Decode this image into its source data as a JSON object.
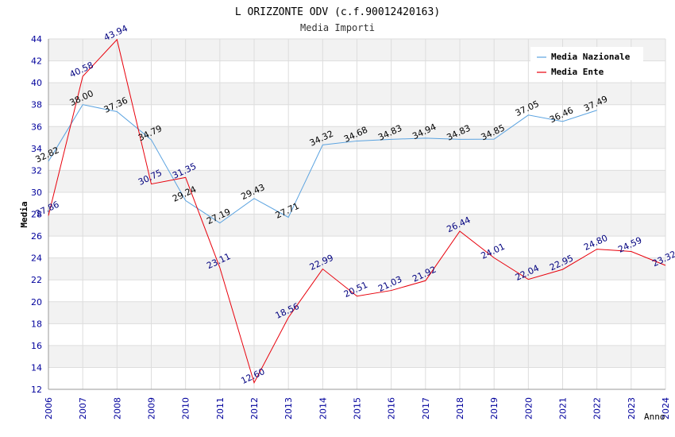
{
  "chart_data": {
    "type": "line",
    "title": "L ORIZZONTE ODV (c.f.90012420163)",
    "subtitle": "Media Importi",
    "xlabel": "Anno",
    "ylabel": "Media",
    "ylim": [
      12,
      44
    ],
    "y_ticks": [
      "12",
      "14",
      "16",
      "18",
      "20",
      "22",
      "24",
      "26",
      "28",
      "30",
      "32",
      "34",
      "36",
      "38",
      "40",
      "42",
      "44"
    ],
    "x": [
      "2006",
      "2007",
      "2008",
      "2009",
      "2010",
      "2011",
      "2012",
      "2013",
      "2014",
      "2015",
      "2016",
      "2017",
      "2018",
      "2019",
      "2020",
      "2021",
      "2022",
      "2023",
      "2024"
    ],
    "grid": true,
    "legend_position": "top-right",
    "series": [
      {
        "name": "Media Nazionale",
        "color": "#5ba3e0",
        "label_color": "#000000",
        "values": [
          32.82,
          38.0,
          37.36,
          34.79,
          29.24,
          27.19,
          29.43,
          27.71,
          34.32,
          34.68,
          34.83,
          34.94,
          34.83,
          34.85,
          37.05,
          36.46,
          37.49,
          null,
          null
        ],
        "labels": [
          "32.82",
          "38.00",
          "37.36",
          "34.79",
          "29.24",
          "27.19",
          "29.43",
          "27.71",
          "34.32",
          "34.68",
          "34.83",
          "34.94",
          "34.83",
          "34.85",
          "37.05",
          "36.46",
          "37.49",
          "",
          ""
        ]
      },
      {
        "name": "Media Ente",
        "color": "#e8000b",
        "label_color": "#00007f",
        "values": [
          27.86,
          40.58,
          43.94,
          30.75,
          31.35,
          23.11,
          12.6,
          18.56,
          22.99,
          20.51,
          21.03,
          21.92,
          26.44,
          24.01,
          22.04,
          22.95,
          24.8,
          24.59,
          23.32
        ],
        "labels": [
          "27.86",
          "40.58",
          "43.94",
          "30.75",
          "31.35",
          "23.11",
          "12.60",
          "18.56",
          "22.99",
          "20.51",
          "21.03",
          "21.92",
          "26.44",
          "24.01",
          "22.04",
          "22.95",
          "24.80",
          "24.59",
          "23.32"
        ]
      }
    ]
  }
}
